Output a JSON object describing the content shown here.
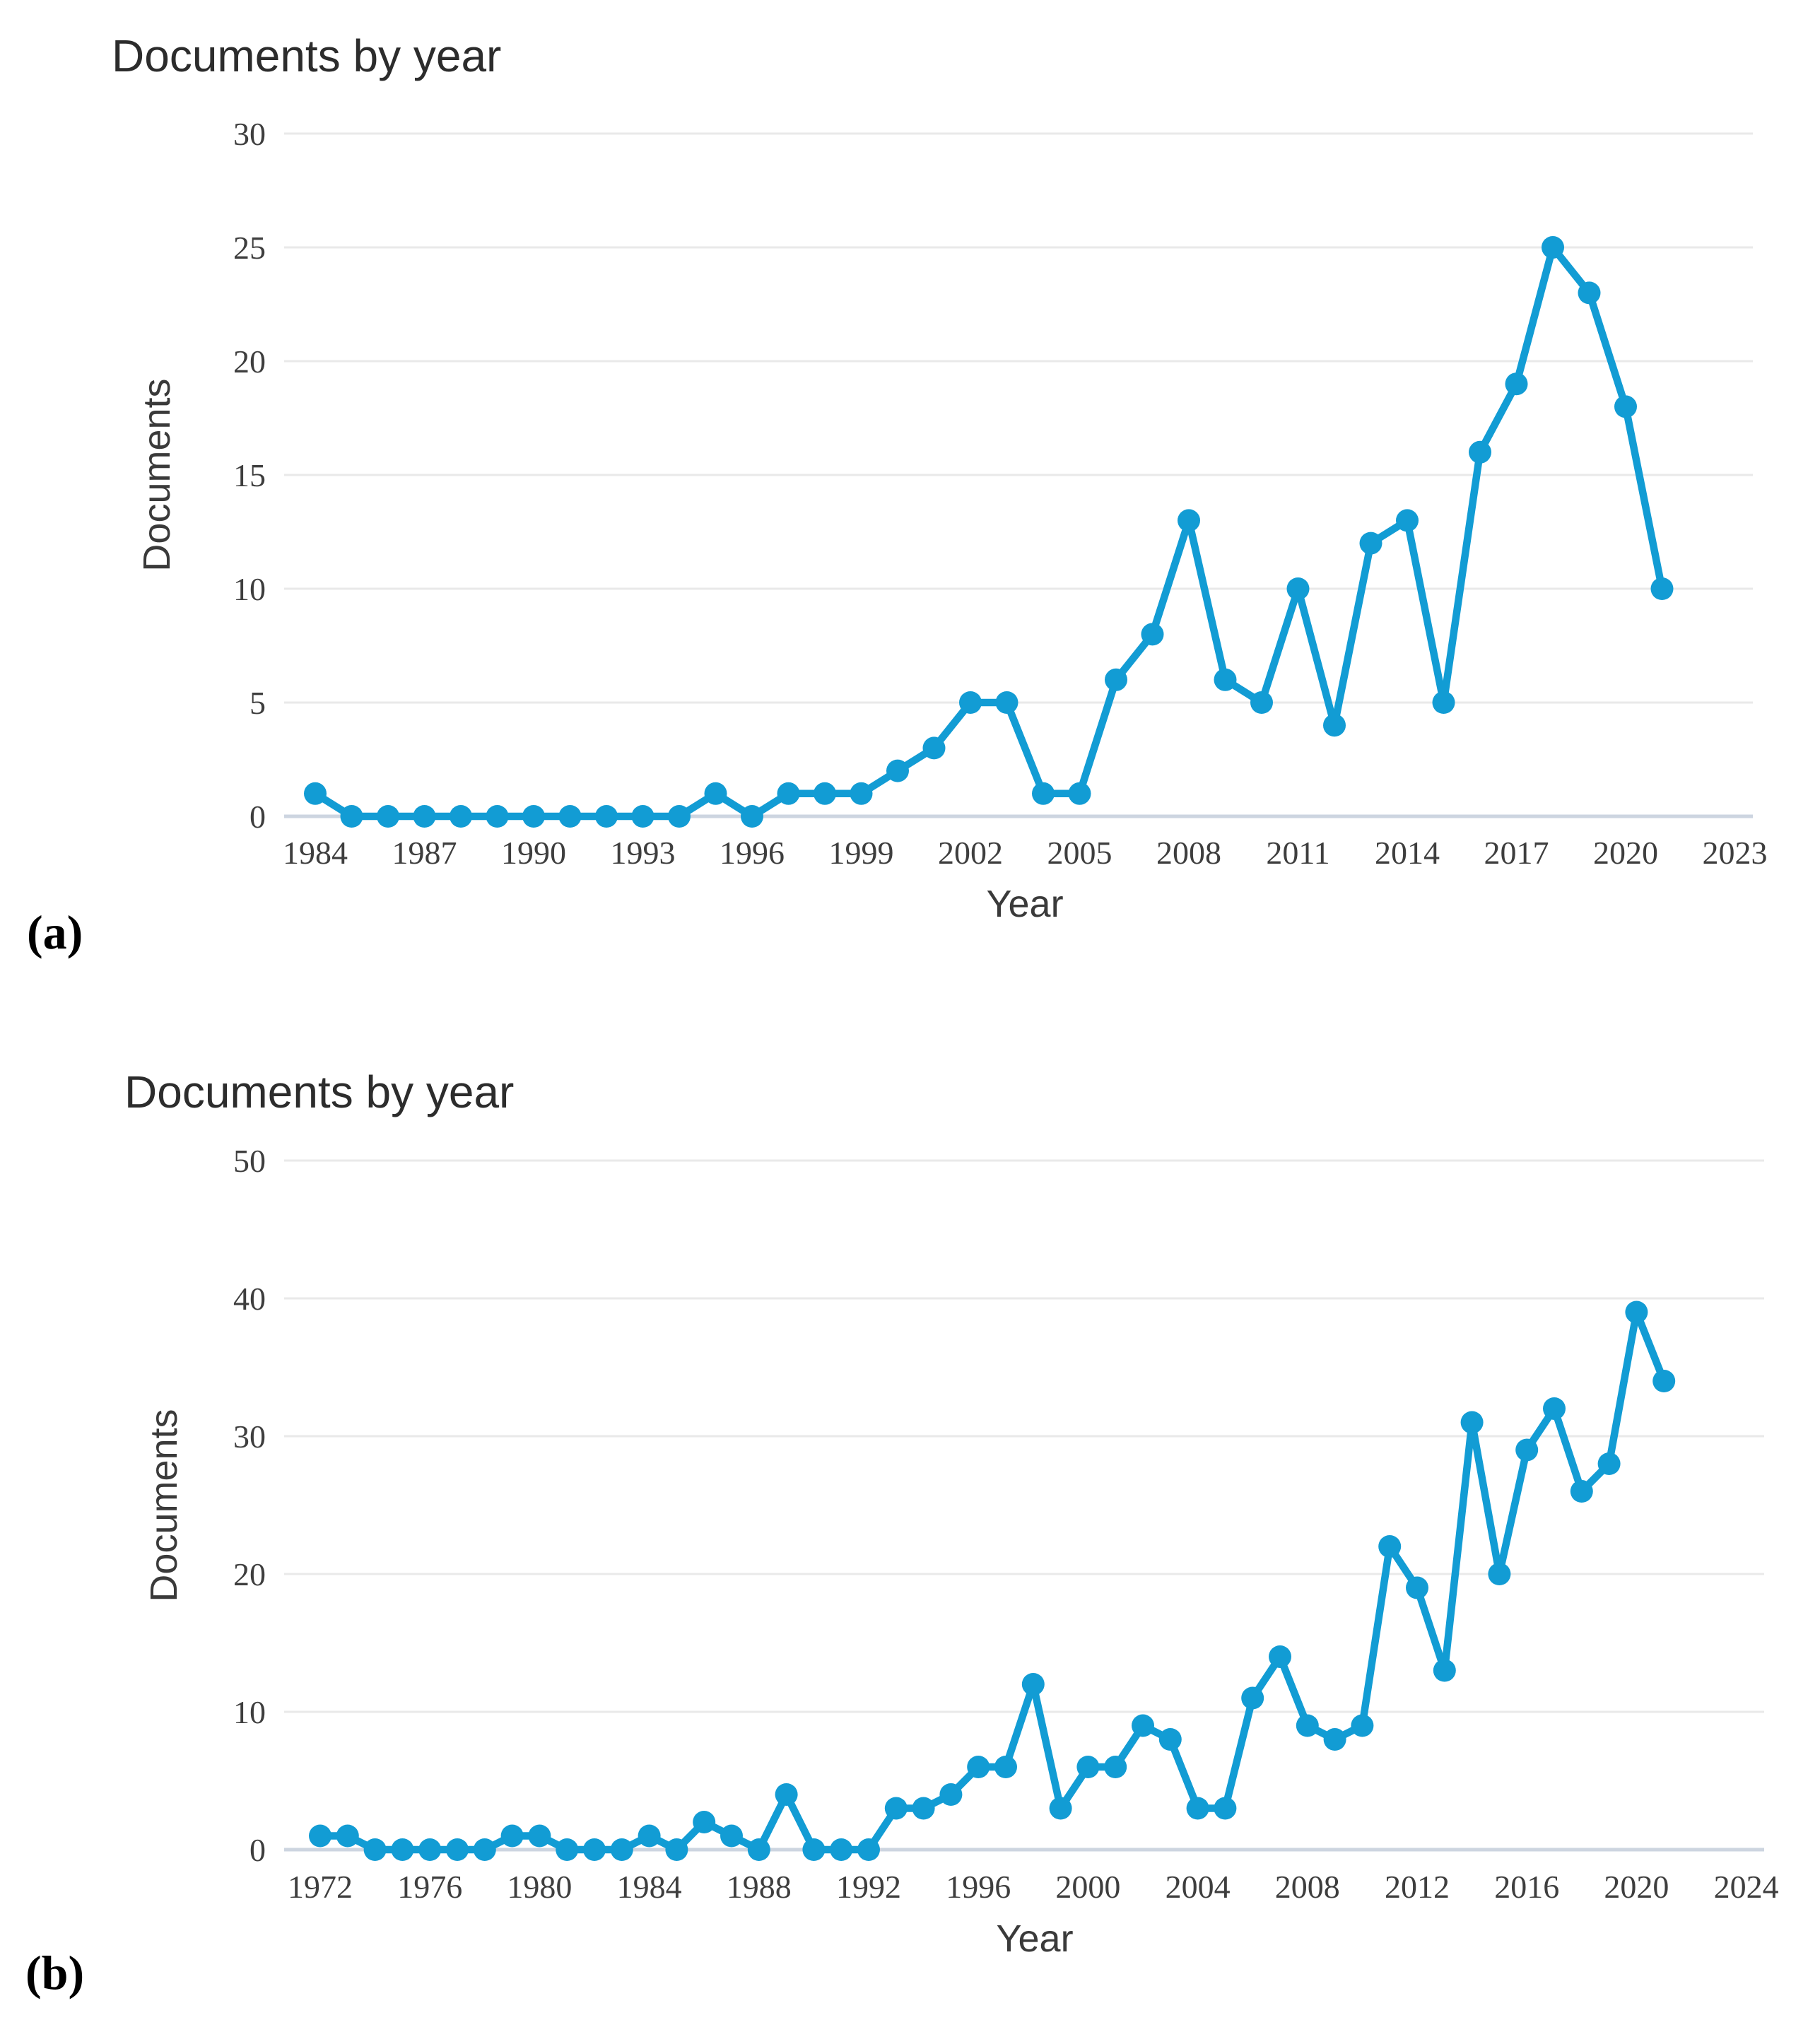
{
  "chart_data": [
    {
      "type": "line",
      "panel_label": "(a)",
      "title": "Documents by year",
      "xlabel": "Year",
      "ylabel": "Documents",
      "legend": null,
      "grid": true,
      "x": [
        1984,
        1985,
        1986,
        1987,
        1988,
        1989,
        1990,
        1991,
        1992,
        1993,
        1994,
        1995,
        1996,
        1997,
        1998,
        1999,
        2000,
        2001,
        2002,
        2003,
        2004,
        2005,
        2006,
        2007,
        2008,
        2009,
        2010,
        2011,
        2012,
        2013,
        2014,
        2015,
        2016,
        2017,
        2018,
        2019,
        2020,
        2021
      ],
      "values": [
        1,
        0,
        0,
        0,
        0,
        0,
        0,
        0,
        0,
        0,
        0,
        1,
        0,
        1,
        1,
        1,
        2,
        3,
        5,
        5,
        1,
        1,
        6,
        8,
        13,
        6,
        5,
        10,
        4,
        12,
        13,
        5,
        16,
        19,
        25,
        23,
        18,
        10
      ],
      "xticks": [
        1984,
        1987,
        1990,
        1993,
        1996,
        1999,
        2002,
        2005,
        2008,
        2011,
        2014,
        2017,
        2020,
        2023
      ],
      "yticks": [
        0,
        5,
        10,
        15,
        20,
        25,
        30
      ],
      "xlim": [
        1984,
        2023
      ],
      "ylim": [
        0,
        30
      ],
      "line_color": "#129cd4",
      "grid_color": "#e9e9e9",
      "baseline_color": "#cdd5e0",
      "tick_color": "#3e3e3e"
    },
    {
      "type": "line",
      "panel_label": "(b)",
      "title": "Documents by year",
      "xlabel": "Year",
      "ylabel": "Documents",
      "legend": null,
      "grid": true,
      "x": [
        1972,
        1973,
        1974,
        1975,
        1976,
        1977,
        1978,
        1979,
        1980,
        1981,
        1982,
        1983,
        1984,
        1985,
        1986,
        1987,
        1988,
        1989,
        1990,
        1991,
        1992,
        1993,
        1994,
        1995,
        1996,
        1997,
        1998,
        1999,
        2000,
        2001,
        2002,
        2003,
        2004,
        2005,
        2006,
        2007,
        2008,
        2009,
        2010,
        2011,
        2012,
        2013,
        2014,
        2015,
        2016,
        2017,
        2018,
        2019,
        2020,
        2021
      ],
      "values": [
        1,
        1,
        0,
        0,
        0,
        0,
        0,
        1,
        1,
        0,
        0,
        0,
        1,
        0,
        2,
        1,
        0,
        4,
        0,
        0,
        0,
        3,
        3,
        4,
        6,
        6,
        12,
        3,
        6,
        6,
        9,
        8,
        3,
        3,
        11,
        14,
        9,
        8,
        9,
        22,
        19,
        13,
        31,
        20,
        29,
        32,
        26,
        28,
        39,
        34
      ],
      "xticks": [
        1972,
        1976,
        1980,
        1984,
        1988,
        1992,
        1996,
        2000,
        2004,
        2008,
        2012,
        2016,
        2020,
        2024
      ],
      "yticks": [
        0,
        10,
        20,
        30,
        40,
        50
      ],
      "xlim": [
        1972,
        2024
      ],
      "ylim": [
        0,
        50
      ],
      "line_color": "#129cd4",
      "grid_color": "#e9e9e9",
      "baseline_color": "#cdd5e0",
      "tick_color": "#3e3e3e"
    }
  ]
}
